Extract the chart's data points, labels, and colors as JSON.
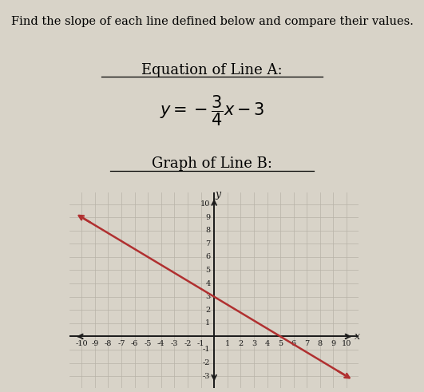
{
  "title_text": "Find the slope of each line defined below and compare their values.",
  "bg_color": "#d8d3c8",
  "grid_color": "#b8b2a8",
  "axis_color": "#1a1a1a",
  "line_b_color": "#b03030",
  "line_b_slope": -0.6,
  "line_b_intercept": 3,
  "xmin": -10,
  "xmax": 10,
  "ymin": -3,
  "ymax": 10,
  "title_fontsize": 10.5,
  "heading_fontsize": 13,
  "eq_fontsize": 15,
  "tick_fontsize": 7
}
